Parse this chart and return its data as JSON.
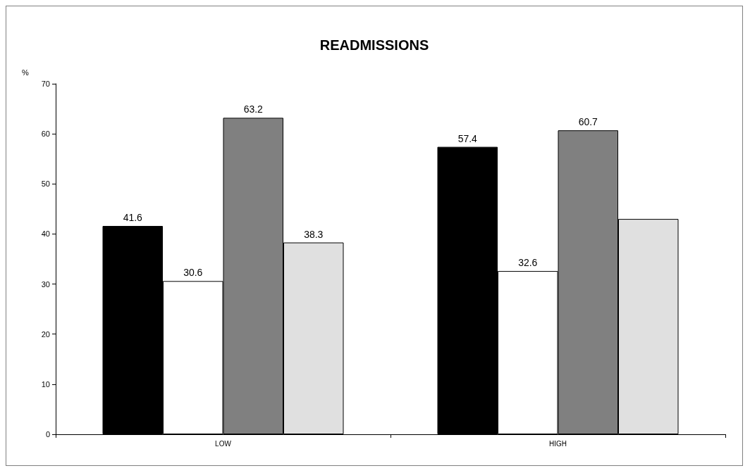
{
  "chart_data": {
    "type": "bar",
    "title": "READMISSIONS",
    "ylabel": "%",
    "categories": [
      "LOW",
      "HIGH"
    ],
    "series": [
      {
        "color": "#000000",
        "values": [
          41.6,
          57.4
        ],
        "value_labels": [
          "41.6",
          "57.4"
        ]
      },
      {
        "color": "#ffffff",
        "values": [
          30.6,
          32.6
        ],
        "value_labels": [
          "30.6",
          "32.6"
        ]
      },
      {
        "color": "#808080",
        "values": [
          63.2,
          60.7
        ],
        "value_labels": [
          "63.2",
          "60.7"
        ]
      },
      {
        "color": "#e0e0e0",
        "values": [
          38.3,
          43.0
        ],
        "value_labels": [
          "38.3",
          null
        ]
      }
    ],
    "ylim": [
      0,
      70
    ],
    "yticks": [
      0,
      10,
      20,
      30,
      40,
      50,
      60,
      70
    ],
    "grid": false
  }
}
